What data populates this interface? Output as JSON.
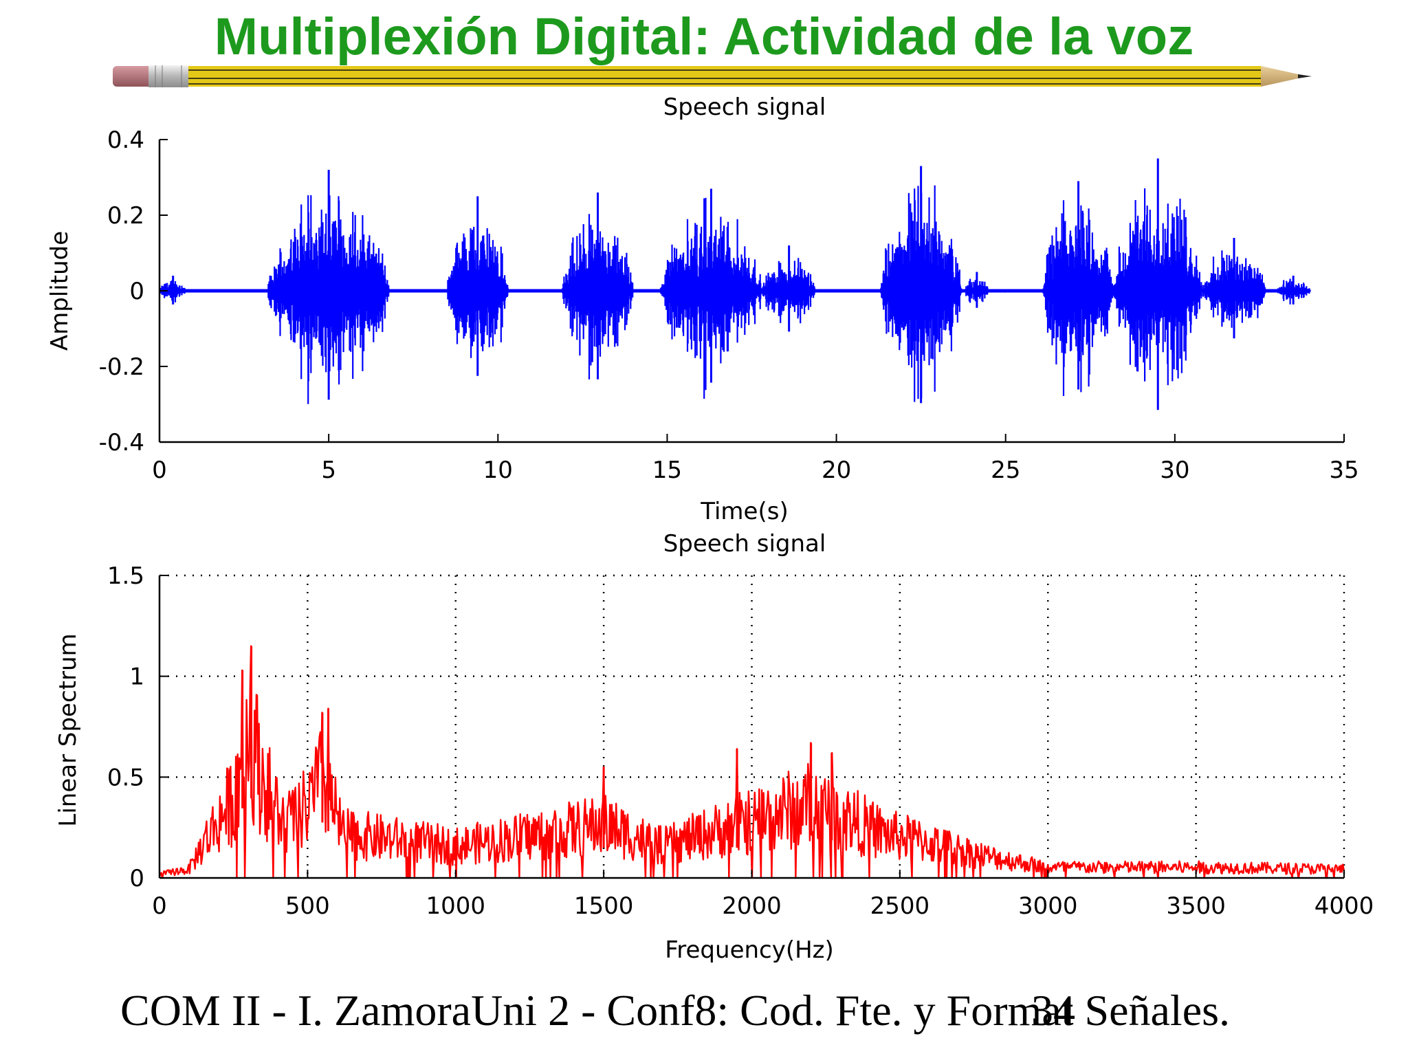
{
  "slide": {
    "title": "Multiplexión Digital: Actividad de la voz",
    "footer": "COM II - I. ZamoraUni 2 - Conf8: Cod. Fte. y Format Señales.",
    "page_number": "34"
  },
  "colors": {
    "title": "#1d9a1d",
    "time_series": "#0000ff",
    "spectrum_series": "#ff0000",
    "pencil_body": "#e3c818",
    "pencil_eraser": "#b8757a"
  },
  "icons": {
    "decoration": "pencil-icon"
  },
  "chart_data": [
    {
      "type": "line",
      "title": "Speech signal",
      "xlabel": "Time(s)",
      "ylabel": "Amplitude",
      "xlim": [
        0,
        35
      ],
      "ylim": [
        -0.4,
        0.4
      ],
      "xticks": [
        "0",
        "5",
        "10",
        "15",
        "20",
        "25",
        "30",
        "35"
      ],
      "yticks": [
        "0.4",
        "0.2",
        "0",
        "-0.2",
        "-0.4"
      ],
      "grid": false,
      "legend": "none",
      "segments": [
        {
          "start": 0.0,
          "end": 0.8,
          "peak": 0.04
        },
        {
          "start": 3.2,
          "end": 6.8,
          "peak": 0.32
        },
        {
          "start": 8.5,
          "end": 10.3,
          "peak": 0.25
        },
        {
          "start": 11.9,
          "end": 14.0,
          "peak": 0.26
        },
        {
          "start": 14.8,
          "end": 17.8,
          "peak": 0.27
        },
        {
          "start": 17.8,
          "end": 19.4,
          "peak": 0.12
        },
        {
          "start": 21.3,
          "end": 23.7,
          "peak": 0.33
        },
        {
          "start": 23.8,
          "end": 24.5,
          "peak": 0.05
        },
        {
          "start": 26.1,
          "end": 28.2,
          "peak": 0.29
        },
        {
          "start": 28.2,
          "end": 30.8,
          "peak": 0.35
        },
        {
          "start": 30.8,
          "end": 32.7,
          "peak": 0.14
        },
        {
          "start": 33.0,
          "end": 34.0,
          "peak": 0.04
        }
      ]
    },
    {
      "type": "line",
      "title": "Speech signal",
      "xlabel": "Frequency(Hz)",
      "ylabel": "Linear Spectrum",
      "xlim": [
        0,
        4000
      ],
      "ylim": [
        0,
        1.5
      ],
      "xticks": [
        "0",
        "500",
        "1000",
        "1500",
        "2000",
        "2500",
        "3000",
        "3500",
        "4000"
      ],
      "yticks": [
        "1.5",
        "1",
        "0.5",
        "0"
      ],
      "grid": true,
      "legend": "none",
      "envelope": [
        {
          "x": 0,
          "y": 0.02
        },
        {
          "x": 100,
          "y": 0.05
        },
        {
          "x": 150,
          "y": 0.2
        },
        {
          "x": 250,
          "y": 0.45
        },
        {
          "x": 300,
          "y": 0.85
        },
        {
          "x": 350,
          "y": 0.55
        },
        {
          "x": 420,
          "y": 0.3
        },
        {
          "x": 500,
          "y": 0.4
        },
        {
          "x": 550,
          "y": 0.55
        },
        {
          "x": 620,
          "y": 0.25
        },
        {
          "x": 1000,
          "y": 0.18
        },
        {
          "x": 1300,
          "y": 0.25
        },
        {
          "x": 1500,
          "y": 0.3
        },
        {
          "x": 1700,
          "y": 0.18
        },
        {
          "x": 1950,
          "y": 0.3
        },
        {
          "x": 2200,
          "y": 0.42
        },
        {
          "x": 2450,
          "y": 0.25
        },
        {
          "x": 2600,
          "y": 0.2
        },
        {
          "x": 2800,
          "y": 0.12
        },
        {
          "x": 3000,
          "y": 0.06
        },
        {
          "x": 3500,
          "y": 0.06
        },
        {
          "x": 4000,
          "y": 0.05
        }
      ],
      "peaks": [
        {
          "x": 280,
          "y": 1.03
        },
        {
          "x": 310,
          "y": 1.15
        },
        {
          "x": 550,
          "y": 0.82
        },
        {
          "x": 570,
          "y": 0.84
        },
        {
          "x": 1500,
          "y": 0.55
        },
        {
          "x": 1950,
          "y": 0.64
        },
        {
          "x": 2200,
          "y": 0.67
        },
        {
          "x": 2270,
          "y": 0.62
        }
      ]
    }
  ]
}
